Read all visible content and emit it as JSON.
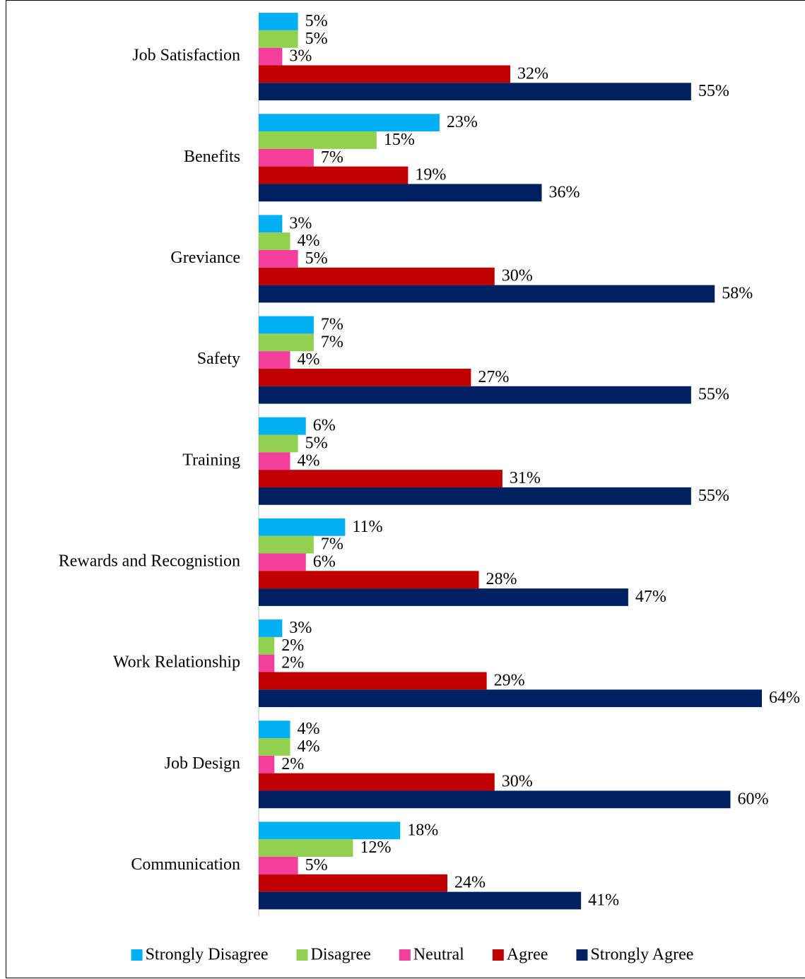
{
  "chart_data": {
    "type": "bar",
    "orientation": "horizontal",
    "categories": [
      "Job Satisfaction",
      "Benefits",
      "Greviance",
      "Safety",
      "Training",
      "Rewards and Recognistion",
      "Work Relationship",
      "Job Design",
      "Communication"
    ],
    "series": [
      {
        "name": "Strongly Disagree",
        "color": "#00b0f0",
        "values": [
          5,
          23,
          3,
          7,
          6,
          11,
          3,
          4,
          18
        ],
        "value_labels": [
          "5%",
          "23%",
          "3%",
          "7%",
          "6%",
          "11%",
          "3%",
          "4%",
          "18%"
        ]
      },
      {
        "name": "Disagree",
        "color": "#92d050",
        "values": [
          5,
          15,
          4,
          7,
          5,
          7,
          2,
          4,
          12
        ],
        "value_labels": [
          "5%",
          "15%",
          "4%",
          "7%",
          "5%",
          "7%",
          "2%",
          "4%",
          "12%"
        ]
      },
      {
        "name": "Neutral",
        "color": "#f23f9c",
        "values": [
          3,
          7,
          5,
          4,
          4,
          6,
          2,
          2,
          5
        ],
        "value_labels": [
          "3%",
          "7%",
          "5%",
          "4%",
          "4%",
          "6%",
          "2%",
          "2%",
          "5%"
        ]
      },
      {
        "name": "Agree",
        "color": "#c00000",
        "values": [
          32,
          19,
          30,
          27,
          31,
          28,
          29,
          30,
          24
        ],
        "value_labels": [
          "32%",
          "19%",
          "30%",
          "27%",
          "31%",
          "28%",
          "29%",
          "30%",
          "24%"
        ]
      },
      {
        "name": "Strongly Agree",
        "color": "#002060",
        "values": [
          55,
          36,
          58,
          55,
          55,
          47,
          64,
          60,
          41
        ],
        "value_labels": [
          "55%",
          "36%",
          "58%",
          "55%",
          "55%",
          "47%",
          "64%",
          "60%",
          "41%"
        ]
      }
    ],
    "xlim": [
      0,
      64
    ],
    "legend": "bottom"
  }
}
